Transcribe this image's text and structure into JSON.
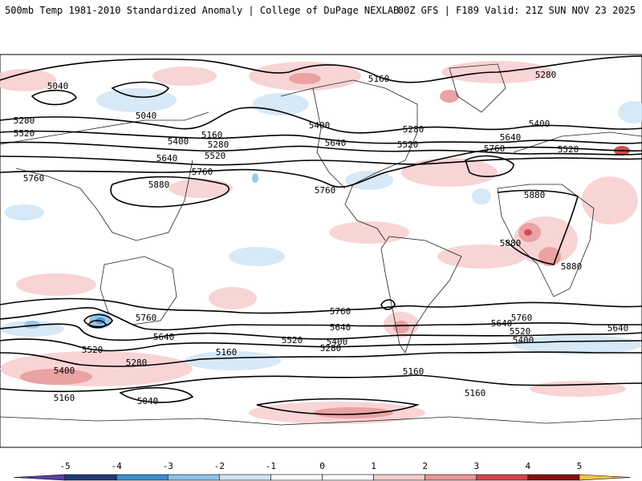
{
  "header": {
    "title_left": "500mb Temp 1981-2010 Standardized Anomaly | College of DuPage NEXLAB",
    "title_right": "00Z GFS | F189 Valid: 21Z SUN NOV 23 2025"
  },
  "colorbar": {
    "ticks": [
      "-5",
      "-4",
      "-3",
      "-2",
      "-1",
      "0",
      "1",
      "2",
      "3",
      "4",
      "5"
    ],
    "bin_colors": [
      "#5a3fa6",
      "#1f3a78",
      "#3b8fd1",
      "#8ec1e8",
      "#cfe4f5",
      "#ffffff",
      "#ffffff",
      "#f7cccc",
      "#e99595",
      "#d2454a",
      "#8b0d0d",
      "#f5c342"
    ]
  },
  "contour_labels": [
    "5040",
    "5040",
    "5040",
    "5160",
    "5160",
    "5160",
    "5160",
    "5160",
    "5160",
    "5280",
    "5280",
    "5280",
    "5280",
    "5280",
    "5280",
    "5400",
    "5400",
    "5400",
    "5400",
    "5400",
    "5400",
    "5520",
    "5520",
    "5520",
    "5520",
    "5520",
    "5520",
    "5520",
    "5640",
    "5640",
    "5640",
    "5640",
    "5640",
    "5640",
    "5640",
    "5760",
    "5760",
    "5760",
    "5760",
    "5760",
    "5760",
    "5760",
    "5880",
    "5880",
    "5880",
    "5880"
  ]
}
